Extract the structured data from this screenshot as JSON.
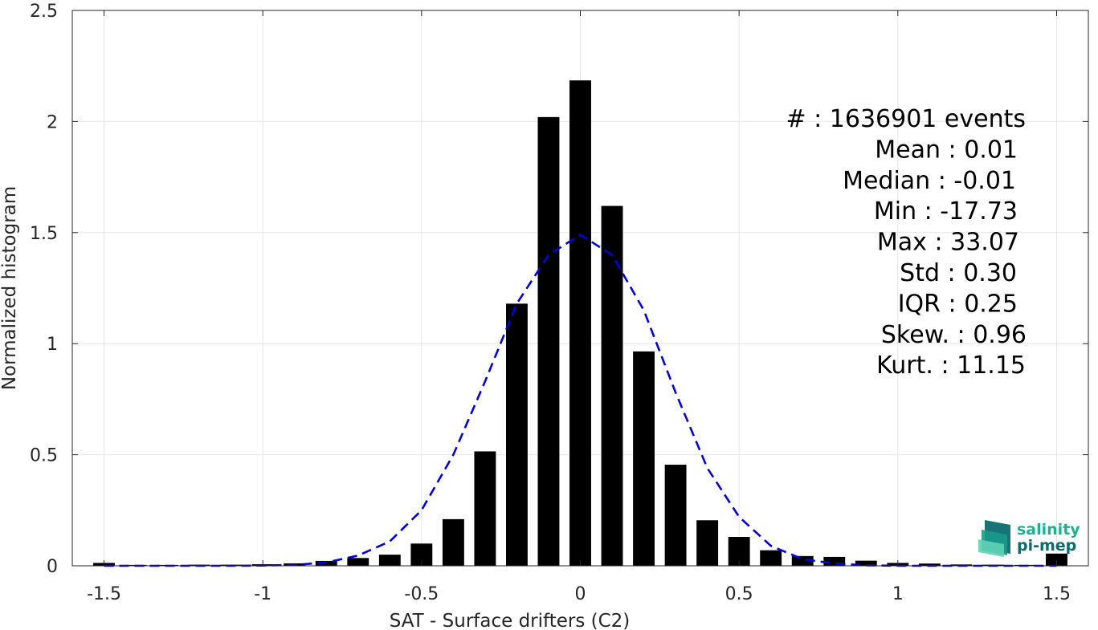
{
  "chart_data": {
    "type": "bar",
    "xlabel": "SAT - Surface drifters (C2)",
    "ylabel": "Normalized histogram",
    "xlim": [
      -1.6,
      1.6
    ],
    "ylim": [
      0,
      2.5
    ],
    "xticks": [
      "-1.5",
      "-1",
      "-0.5",
      "0",
      "0.5",
      "1",
      "1.5"
    ],
    "xtick_values": [
      -1.5,
      -1,
      -0.5,
      0,
      0.5,
      1,
      1.5
    ],
    "yticks": [
      "0",
      "0.5",
      "1",
      "1.5",
      "2",
      "2.5"
    ],
    "ytick_values": [
      0,
      0.5,
      1,
      1.5,
      2,
      2.5
    ],
    "grid": true,
    "bin_width": 0.1,
    "bar_color": "#000000",
    "bars": {
      "x": [
        -1.5,
        -1.4,
        -1.3,
        -1.2,
        -1.1,
        -1.0,
        -0.9,
        -0.8,
        -0.7,
        -0.6,
        -0.5,
        -0.4,
        -0.3,
        -0.2,
        -0.1,
        0.0,
        0.1,
        0.2,
        0.3,
        0.4,
        0.5,
        0.6,
        0.7,
        0.8,
        0.9,
        1.0,
        1.1,
        1.2,
        1.3,
        1.4,
        1.5
      ],
      "values": [
        0.013,
        0.004,
        0.004,
        0.005,
        0.005,
        0.007,
        0.011,
        0.022,
        0.035,
        0.05,
        0.1,
        0.21,
        0.515,
        1.18,
        2.02,
        2.185,
        1.62,
        0.965,
        0.455,
        0.205,
        0.13,
        0.07,
        0.044,
        0.04,
        0.023,
        0.013,
        0.01,
        0.006,
        0.005,
        0.004,
        0.055
      ]
    },
    "fit": {
      "style": "dashed",
      "color": "#0000dd",
      "x": [
        -1.5,
        -1.4,
        -1.3,
        -1.2,
        -1.1,
        -1.0,
        -0.9,
        -0.8,
        -0.7,
        -0.6,
        -0.5,
        -0.4,
        -0.3,
        -0.2,
        -0.1,
        0.0,
        0.1,
        0.2,
        0.3,
        0.4,
        0.5,
        0.6,
        0.7,
        0.8,
        0.9,
        1.0,
        1.1,
        1.2,
        1.3,
        1.4,
        1.5
      ],
      "values": [
        0.0,
        0.0,
        0.0,
        0.0,
        0.0,
        0.001,
        0.004,
        0.015,
        0.046,
        0.11,
        0.25,
        0.5,
        0.83,
        1.18,
        1.4,
        1.49,
        1.4,
        1.15,
        0.78,
        0.44,
        0.22,
        0.09,
        0.03,
        0.01,
        0.002,
        0.0,
        0.0,
        0.0,
        0.0,
        0.0,
        0.0
      ]
    }
  },
  "stats": [
    {
      "label": "#  : 1636901 events"
    },
    {
      "label": "Mean : 0.01"
    },
    {
      "label": "Median : -0.01"
    },
    {
      "label": "Min : -17.73"
    },
    {
      "label": "Max : 33.07"
    },
    {
      "label": "Std : 0.30"
    },
    {
      "label": "IQR : 0.25"
    },
    {
      "label": "Skew. : 0.96"
    },
    {
      "label": "Kurt. : 11.15"
    }
  ],
  "logo": {
    "line1": "salinity",
    "line2": "pi-mep",
    "color1": "#1bb38f",
    "color2": "#0b6b6e"
  }
}
